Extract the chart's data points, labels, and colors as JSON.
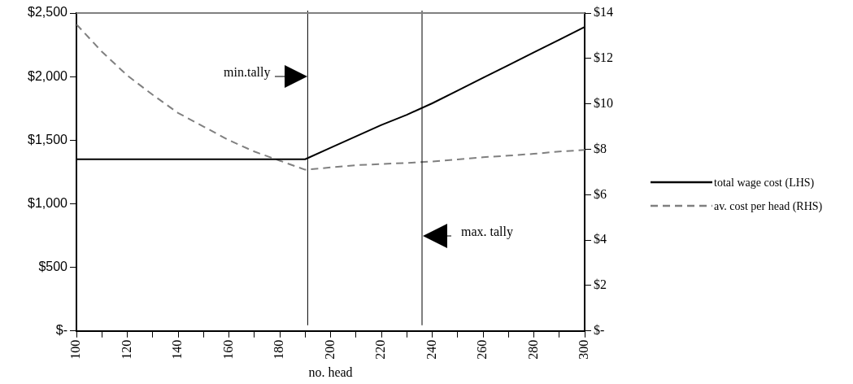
{
  "chart_data": {
    "type": "line",
    "xlabel": "no. head",
    "x": [
      100,
      110,
      120,
      130,
      140,
      150,
      160,
      170,
      180,
      190,
      200,
      210,
      220,
      230,
      240,
      250,
      260,
      270,
      280,
      290,
      300
    ],
    "series": [
      {
        "name": "total wage cost (LHS)",
        "color": "#000000",
        "line_style": "solid",
        "values": [
          1350,
          1350,
          1350,
          1350,
          1350,
          1350,
          1350,
          1350,
          1350,
          1350,
          1440,
          1530,
          1620,
          1700,
          1790,
          1890,
          1990,
          2090,
          2190,
          2290,
          2390
        ]
      },
      {
        "name": "av. cost per head (RHS)",
        "color": "#808080",
        "line_style": "dashed",
        "axis": "y2",
        "values": [
          13.5,
          12.3,
          11.25,
          10.4,
          9.6,
          9.0,
          8.4,
          7.9,
          7.5,
          7.1,
          7.2,
          7.3,
          7.35,
          7.4,
          7.46,
          7.55,
          7.65,
          7.72,
          7.8,
          7.9,
          7.97
        ]
      }
    ],
    "xlim": [
      100,
      300
    ],
    "xticks": [
      100,
      {
        "value": 110,
        "label": null
      },
      120,
      {
        "value": 130,
        "label": null
      },
      140,
      {
        "value": 150,
        "label": null
      },
      160,
      {
        "value": 170,
        "label": null
      },
      180,
      {
        "value": 190,
        "label": null
      },
      200,
      {
        "value": 210,
        "label": null
      },
      220,
      {
        "value": 230,
        "label": null
      },
      240,
      {
        "value": 250,
        "label": null
      },
      260,
      {
        "value": 270,
        "label": null
      },
      280,
      {
        "value": 290,
        "label": null
      },
      300
    ],
    "ylim": [
      0,
      2500
    ],
    "yticks": [
      {
        "value": 0,
        "label": "$-"
      },
      {
        "value": 500,
        "label": "$500"
      },
      {
        "value": 1000,
        "label": "$1,000"
      },
      {
        "value": 1500,
        "label": "$1,500"
      },
      {
        "value": 2000,
        "label": "$2,000"
      },
      {
        "value": 2500,
        "label": "$2,500"
      }
    ],
    "y2lim": [
      0,
      14
    ],
    "y2ticks": [
      {
        "value": 0,
        "label": "$-"
      },
      {
        "value": 2,
        "label": "$2"
      },
      {
        "value": 4,
        "label": "$4"
      },
      {
        "value": 6,
        "label": "$6"
      },
      {
        "value": 8,
        "label": "$8"
      },
      {
        "value": 10,
        "label": "$10"
      },
      {
        "value": 12,
        "label": "$12"
      },
      {
        "value": 14,
        "label": "$14"
      }
    ],
    "ref_lines": [
      {
        "axis": "x",
        "value": 191,
        "color": "#000000",
        "label": "min.tally"
      },
      {
        "axis": "x",
        "value": 236,
        "color": "#000000",
        "label": "max. tally"
      }
    ],
    "grid": false,
    "legend": "right",
    "marker": "none"
  }
}
